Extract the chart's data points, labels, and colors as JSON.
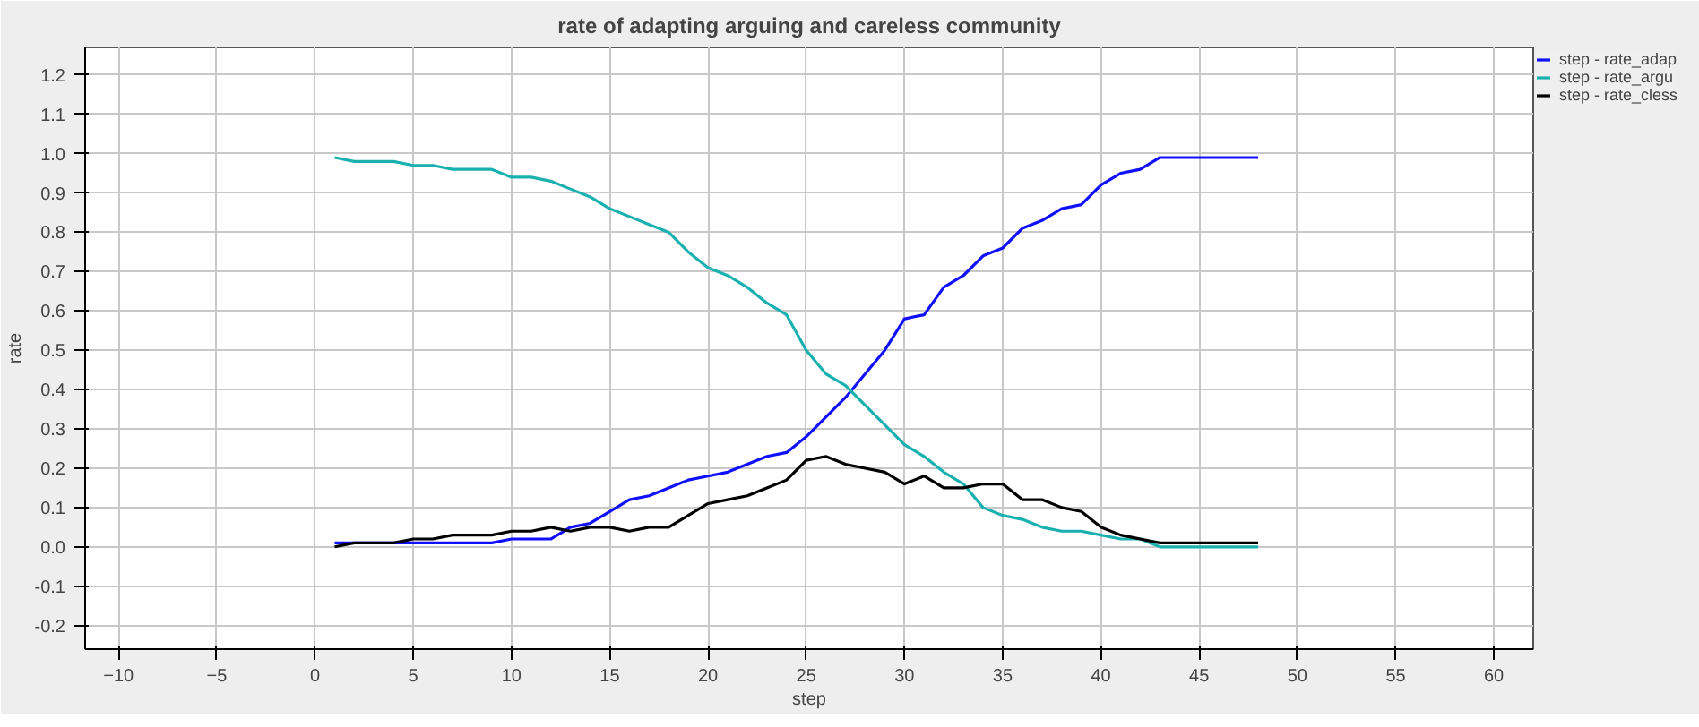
{
  "chart_data": {
    "type": "line",
    "title": "rate of adapting arguing and careless community",
    "xlabel": "step",
    "ylabel": "rate",
    "x": [
      1,
      2,
      3,
      4,
      5,
      6,
      7,
      8,
      9,
      10,
      11,
      12,
      13,
      14,
      15,
      16,
      17,
      18,
      19,
      20,
      21,
      22,
      23,
      24,
      25,
      26,
      27,
      28,
      29,
      30,
      31,
      32,
      33,
      34,
      35,
      36,
      37,
      38,
      39,
      40,
      41,
      42,
      43,
      44,
      45,
      46,
      47,
      48
    ],
    "series": [
      {
        "name": "step - rate_adap",
        "color": "#1010ff",
        "values": [
          0.01,
          0.01,
          0.01,
          0.01,
          0.01,
          0.01,
          0.01,
          0.01,
          0.01,
          0.02,
          0.02,
          0.02,
          0.05,
          0.06,
          0.09,
          0.12,
          0.13,
          0.15,
          0.17,
          0.18,
          0.19,
          0.21,
          0.23,
          0.24,
          0.28,
          0.33,
          0.38,
          0.44,
          0.5,
          0.58,
          0.59,
          0.66,
          0.69,
          0.74,
          0.76,
          0.81,
          0.83,
          0.86,
          0.87,
          0.92,
          0.95,
          0.96,
          0.99,
          0.99,
          0.99,
          0.99,
          0.99,
          0.99
        ]
      },
      {
        "name": "step - rate_argu",
        "color": "#1ab0b0",
        "values": [
          0.99,
          0.98,
          0.98,
          0.98,
          0.97,
          0.97,
          0.96,
          0.96,
          0.96,
          0.94,
          0.94,
          0.93,
          0.91,
          0.89,
          0.86,
          0.84,
          0.82,
          0.8,
          0.75,
          0.71,
          0.69,
          0.66,
          0.62,
          0.59,
          0.5,
          0.44,
          0.41,
          0.36,
          0.31,
          0.26,
          0.23,
          0.19,
          0.16,
          0.1,
          0.08,
          0.07,
          0.05,
          0.04,
          0.04,
          0.03,
          0.02,
          0.02,
          0.0,
          0.0,
          0.0,
          0.0,
          0.0,
          0.0
        ]
      },
      {
        "name": "step - rate_cless",
        "color": "#000000",
        "values": [
          0.0,
          0.01,
          0.01,
          0.01,
          0.02,
          0.02,
          0.03,
          0.03,
          0.03,
          0.04,
          0.04,
          0.05,
          0.04,
          0.05,
          0.05,
          0.04,
          0.05,
          0.05,
          0.08,
          0.11,
          0.12,
          0.13,
          0.15,
          0.17,
          0.22,
          0.23,
          0.21,
          0.2,
          0.19,
          0.16,
          0.18,
          0.15,
          0.15,
          0.16,
          0.16,
          0.12,
          0.12,
          0.1,
          0.09,
          0.05,
          0.03,
          0.02,
          0.01,
          0.01,
          0.01,
          0.01,
          0.01,
          0.01
        ]
      }
    ],
    "xlim": [
      -11.7,
      62
    ],
    "ylim": [
      -0.26,
      1.27
    ],
    "xticks": [
      -10,
      -5,
      0,
      5,
      10,
      15,
      20,
      25,
      30,
      35,
      40,
      45,
      50,
      55,
      60
    ],
    "yticks": [
      {
        "value": -0.2,
        "label": "-0.2"
      },
      {
        "value": -0.1,
        "label": "-0.1"
      },
      {
        "value": 0,
        "label": "0.0"
      },
      {
        "value": 0.1,
        "label": "0.1"
      },
      {
        "value": 0.2,
        "label": "0.2"
      },
      {
        "value": 0.3,
        "label": "0.3"
      },
      {
        "value": 0.4,
        "label": "0.4"
      },
      {
        "value": 0.5,
        "label": "0.5"
      },
      {
        "value": 0.6,
        "label": "0.6"
      },
      {
        "value": 0.7,
        "label": "0.7"
      },
      {
        "value": 0.8,
        "label": "0.8"
      },
      {
        "value": 0.9,
        "label": "0.9"
      },
      {
        "value": 1,
        "label": "1.0"
      },
      {
        "value": 1.1,
        "label": "1.1"
      },
      {
        "value": 1.2,
        "label": "1.2"
      }
    ],
    "grid": true,
    "legend": "top right",
    "marker": "none",
    "line_style": "solid"
  }
}
